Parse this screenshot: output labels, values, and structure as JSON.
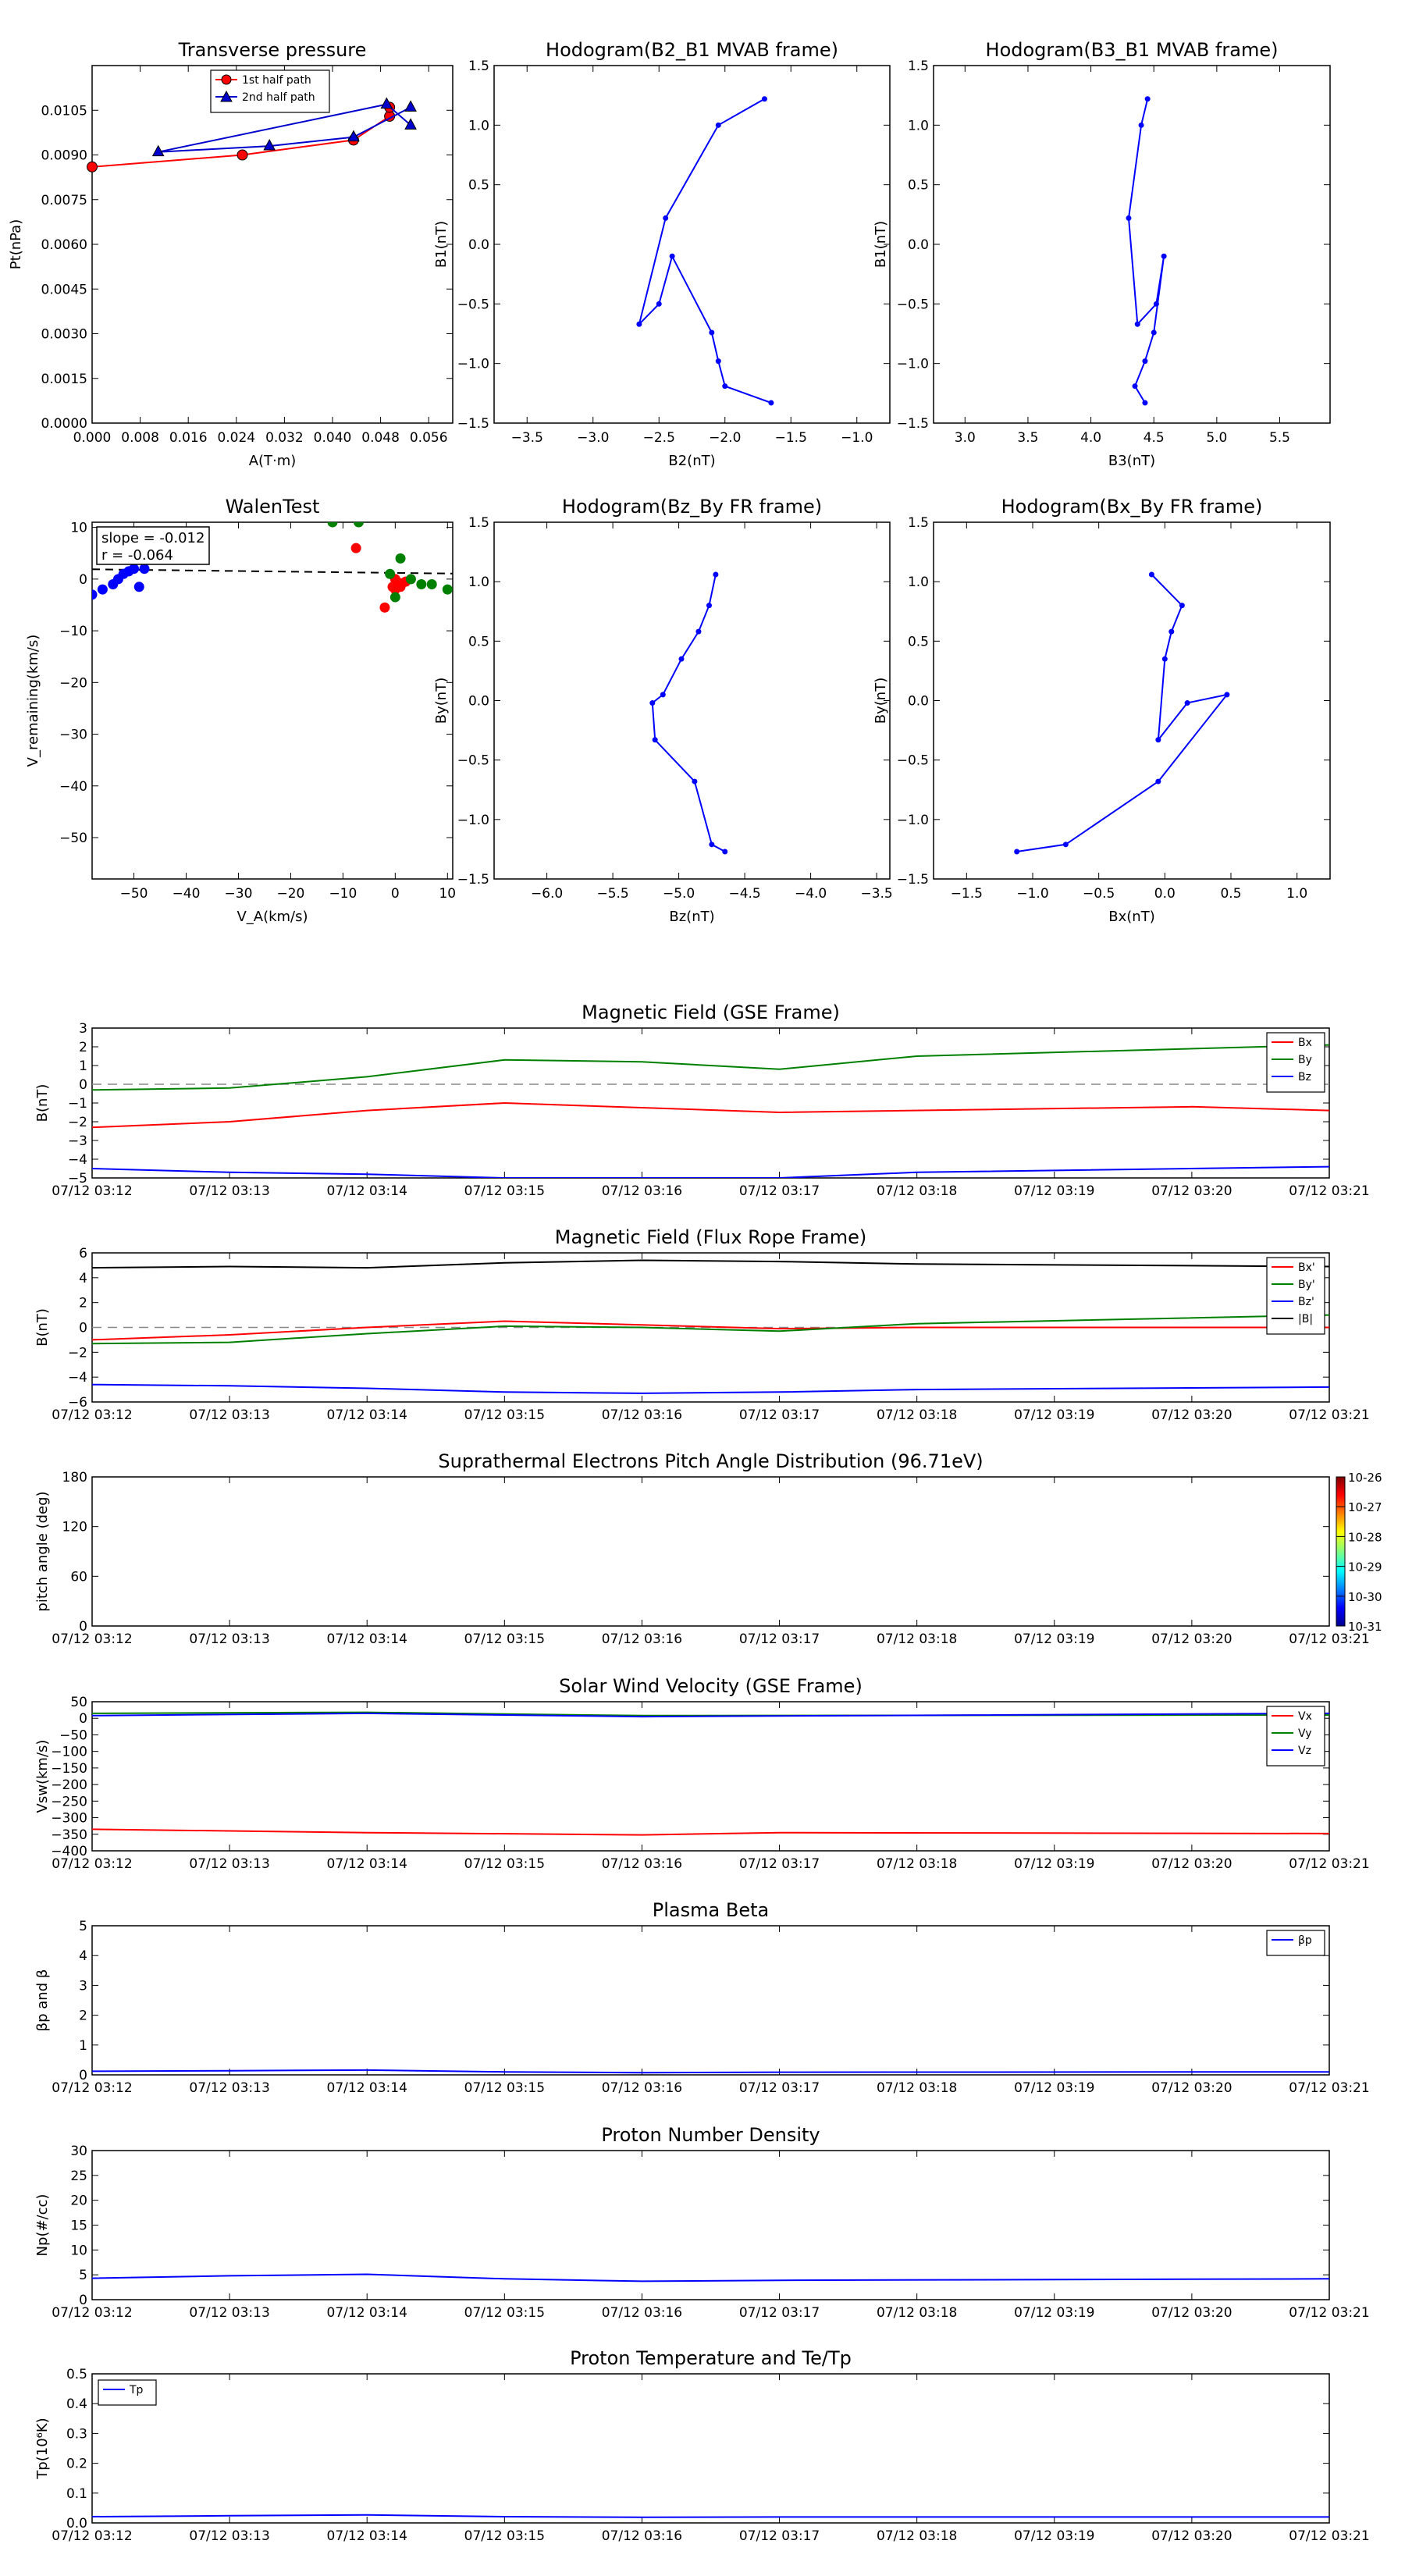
{
  "chart_data": [
    {
      "id": "transverse",
      "type": "line",
      "title": "Transverse pressure",
      "xlabel": "A(T·m)",
      "ylabel": "Pt(nPa)",
      "xlim": [
        0.0,
        0.06
      ],
      "ylim": [
        0.0,
        0.012
      ],
      "xticks": [
        0.0,
        0.008,
        0.016,
        0.024,
        0.032,
        0.04,
        0.048,
        0.056
      ],
      "xtick_labels": [
        "0.000",
        "0.008",
        "0.016",
        "0.024",
        "0.032",
        "0.040",
        "0.048",
        "0.056"
      ],
      "yticks": [
        0.0,
        0.0015,
        0.003,
        0.0045,
        0.006,
        0.0075,
        0.009,
        0.0105
      ],
      "ytick_labels": [
        "0.0000",
        "0.0015",
        "0.0030",
        "0.0045",
        "0.0060",
        "0.0075",
        "0.0090",
        "0.0105"
      ],
      "legend": "top-center",
      "series": [
        {
          "name": "1st half path",
          "color": "#ff0000",
          "marker": "circle",
          "x": [
            0.0,
            0.025,
            0.0435,
            0.0495,
            0.0495
          ],
          "y": [
            0.0086,
            0.009,
            0.0095,
            0.0103,
            0.0106
          ]
        },
        {
          "name": "2nd half path",
          "color": "#0000cc",
          "marker": "triangle",
          "x": [
            0.053,
            0.0435,
            0.0295,
            0.011,
            0.049,
            0.053
          ],
          "y": [
            0.0106,
            0.0096,
            0.0093,
            0.0091,
            0.0107,
            0.01
          ]
        }
      ]
    },
    {
      "id": "hodo_b2b1",
      "type": "line",
      "title": "Hodogram(B2_B1 MVAB frame)",
      "xlabel": "B2(nT)",
      "ylabel": "B1(nT)",
      "xlim": [
        -3.75,
        -0.75
      ],
      "ylim": [
        -1.5,
        1.5
      ],
      "xticks": [
        -3.5,
        -3.0,
        -2.5,
        -2.0,
        -1.5,
        -1.0
      ],
      "xtick_labels": [
        "−3.5",
        "−3.0",
        "−2.5",
        "−2.0",
        "−1.5",
        "−1.0"
      ],
      "yticks": [
        -1.5,
        -1.0,
        -0.5,
        0.0,
        0.5,
        1.0,
        1.5
      ],
      "ytick_labels": [
        "−1.5",
        "−1.0",
        "−0.5",
        "0.0",
        "0.5",
        "1.0",
        "1.5"
      ],
      "color": "#0000ff",
      "x": [
        -1.7,
        -2.05,
        -2.45,
        -2.65,
        -2.5,
        -2.4,
        -2.1,
        -2.05,
        -2.0,
        -1.65
      ],
      "y": [
        1.22,
        1.0,
        0.22,
        -0.67,
        -0.5,
        -0.1,
        -0.74,
        -0.98,
        -1.19,
        -1.33
      ]
    },
    {
      "id": "hodo_b3b1",
      "type": "line",
      "title": "Hodogram(B3_B1 MVAB frame)",
      "xlabel": "B3(nT)",
      "ylabel": "B1(nT)",
      "xlim": [
        2.75,
        5.9
      ],
      "ylim": [
        -1.5,
        1.5
      ],
      "xticks": [
        3.0,
        3.5,
        4.0,
        4.5,
        5.0,
        5.5
      ],
      "xtick_labels": [
        "3.0",
        "3.5",
        "4.0",
        "4.5",
        "5.0",
        "5.5"
      ],
      "yticks": [
        -1.5,
        -1.0,
        -0.5,
        0.0,
        0.5,
        1.0,
        1.5
      ],
      "ytick_labels": [
        "−1.5",
        "−1.0",
        "−0.5",
        "0.0",
        "0.5",
        "1.0",
        "1.5"
      ],
      "color": "#0000ff",
      "x": [
        4.45,
        4.4,
        4.3,
        4.37,
        4.52,
        4.58,
        4.5,
        4.43,
        4.35,
        4.43
      ],
      "y": [
        1.22,
        1.0,
        0.22,
        -0.67,
        -0.5,
        -0.1,
        -0.74,
        -0.98,
        -1.19,
        -1.33
      ]
    },
    {
      "id": "walen",
      "type": "scatter",
      "title": "WalenTest",
      "xlabel": "V_A(km/s)",
      "ylabel": "V_remaining(km/s)",
      "xlim": [
        -58,
        11
      ],
      "ylim": [
        -58,
        11
      ],
      "xticks": [
        -50,
        -40,
        -30,
        -20,
        -10,
        0,
        10
      ],
      "xtick_labels": [
        "−50",
        "−40",
        "−30",
        "−20",
        "−10",
        "0",
        "10"
      ],
      "yticks": [
        -50,
        -40,
        -30,
        -20,
        -10,
        0,
        10
      ],
      "ytick_labels": [
        "−50",
        "−40",
        "−30",
        "−20",
        "−10",
        "0",
        "10"
      ],
      "annotation": [
        "slope = -0.012",
        "r = -0.064"
      ],
      "fit": {
        "slope": -0.012,
        "intercept": 1.2
      },
      "series": [
        {
          "color": "#0000ff",
          "x": [
            -58,
            -56,
            -54,
            -53,
            -52,
            -51,
            -50,
            -48,
            -49
          ],
          "y": [
            -3,
            -2,
            -1,
            0,
            1,
            1.5,
            2,
            2,
            -1.5
          ]
        },
        {
          "color": "#ff0000",
          "x": [
            -7.5,
            0,
            -0.5,
            0,
            1,
            2,
            1,
            -2
          ],
          "y": [
            6,
            0,
            -1.5,
            -2,
            -1.5,
            -0.5,
            -0.8,
            -5.5
          ]
        },
        {
          "color": "#008000",
          "x": [
            -12,
            -7,
            1,
            0,
            3,
            5,
            7,
            10,
            -1
          ],
          "y": [
            11,
            11,
            4,
            -3.5,
            0,
            -1,
            -1,
            -2,
            1
          ]
        }
      ]
    },
    {
      "id": "hodo_bzby",
      "type": "line",
      "title": "Hodogram(Bz_By FR frame)",
      "xlabel": "Bz(nT)",
      "ylabel": "By(nT)",
      "xlim": [
        -6.4,
        -3.4
      ],
      "ylim": [
        -1.5,
        1.5
      ],
      "xticks": [
        -6.0,
        -5.5,
        -5.0,
        -4.5,
        -4.0,
        -3.5
      ],
      "xtick_labels": [
        "−6.0",
        "−5.5",
        "−5.0",
        "−4.5",
        "−4.0",
        "−3.5"
      ],
      "yticks": [
        -1.5,
        -1.0,
        -0.5,
        0.0,
        0.5,
        1.0,
        1.5
      ],
      "ytick_labels": [
        "−1.5",
        "−1.0",
        "−0.5",
        "0.0",
        "0.5",
        "1.0",
        "1.5"
      ],
      "color": "#0000ff",
      "x": [
        -4.72,
        -4.77,
        -4.85,
        -4.98,
        -5.12,
        -5.2,
        -5.18,
        -4.88,
        -4.75,
        -4.65
      ],
      "y": [
        1.06,
        0.8,
        0.58,
        0.35,
        0.05,
        -0.02,
        -0.33,
        -0.68,
        -1.21,
        -1.27
      ]
    },
    {
      "id": "hodo_bxby",
      "type": "line",
      "title": "Hodogram(Bx_By FR frame)",
      "xlabel": "Bx(nT)",
      "ylabel": "By(nT)",
      "xlim": [
        -1.75,
        1.25
      ],
      "ylim": [
        -1.5,
        1.5
      ],
      "xticks": [
        -1.5,
        -1.0,
        -0.5,
        0.0,
        0.5,
        1.0
      ],
      "xtick_labels": [
        "−1.5",
        "−1.0",
        "−0.5",
        "0.0",
        "0.5",
        "1.0"
      ],
      "yticks": [
        -1.5,
        -1.0,
        -0.5,
        0.0,
        0.5,
        1.0,
        1.5
      ],
      "ytick_labels": [
        "−1.5",
        "−1.0",
        "−0.5",
        "0.0",
        "0.5",
        "1.0",
        "1.5"
      ],
      "color": "#0000ff",
      "x": [
        -0.1,
        0.13,
        0.05,
        0.0,
        -0.05,
        0.17,
        0.47,
        -0.05,
        -0.75,
        -1.12
      ],
      "y": [
        1.06,
        0.8,
        0.58,
        0.35,
        -0.33,
        -0.02,
        0.05,
        -0.68,
        -1.21,
        -1.27
      ]
    },
    {
      "id": "mag_gse",
      "type": "line",
      "title": "Magnetic Field (GSE Frame)",
      "ylabel": "B(nT)",
      "xlabel": "",
      "x_categories": [
        "07/12 03:12",
        "07/12 03:13",
        "07/12 03:14",
        "07/12 03:15",
        "07/12 03:16",
        "07/12 03:17",
        "07/12 03:18",
        "07/12 03:19",
        "07/12 03:20",
        "07/12 03:21"
      ],
      "ylim": [
        -5,
        3
      ],
      "yticks": [
        -5,
        -4,
        -3,
        -2,
        -1,
        0,
        1,
        2,
        3
      ],
      "ytick_labels": [
        "−5",
        "−4",
        "−3",
        "−2",
        "−1",
        "0",
        "1",
        "2",
        "3"
      ],
      "zero_line": true,
      "legend": "top-right",
      "series": [
        {
          "name": "Bx",
          "color": "#ff0000",
          "x": [
            0,
            1,
            2,
            3,
            5,
            8,
            9
          ],
          "y": [
            -2.3,
            -2.0,
            -1.4,
            -1.0,
            -1.5,
            -1.2,
            -1.4
          ]
        },
        {
          "name": "By",
          "color": "#008000",
          "x": [
            0,
            1,
            2,
            3,
            4,
            5,
            6,
            9
          ],
          "y": [
            -0.3,
            -0.2,
            0.4,
            1.3,
            1.2,
            0.8,
            1.5,
            2.1
          ]
        },
        {
          "name": "Bz",
          "color": "#0000ff",
          "x": [
            0,
            1,
            2,
            3,
            5,
            6,
            9
          ],
          "y": [
            -4.5,
            -4.7,
            -4.8,
            -5.0,
            -5.0,
            -4.7,
            -4.4
          ]
        }
      ]
    },
    {
      "id": "mag_fr",
      "type": "line",
      "title": "Magnetic Field (Flux Rope Frame)",
      "ylabel": "B(nT)",
      "xlabel": "",
      "x_categories": [
        "07/12 03:12",
        "07/12 03:13",
        "07/12 03:14",
        "07/12 03:15",
        "07/12 03:16",
        "07/12 03:17",
        "07/12 03:18",
        "07/12 03:19",
        "07/12 03:20",
        "07/12 03:21"
      ],
      "ylim": [
        -6,
        6
      ],
      "yticks": [
        -6,
        -4,
        -2,
        0,
        2,
        4,
        6
      ],
      "ytick_labels": [
        "−6",
        "−4",
        "−2",
        "0",
        "2",
        "4",
        "6"
      ],
      "zero_line": true,
      "legend": "top-right",
      "series": [
        {
          "name": "Bx'",
          "color": "#ff0000",
          "x": [
            0,
            1,
            2,
            3,
            4,
            5,
            6,
            9
          ],
          "y": [
            -1.0,
            -0.6,
            0.0,
            0.5,
            0.2,
            -0.1,
            0.0,
            0.0
          ]
        },
        {
          "name": "By'",
          "color": "#008000",
          "x": [
            0,
            1,
            2,
            3,
            4,
            5,
            6,
            9
          ],
          "y": [
            -1.3,
            -1.2,
            -0.5,
            0.1,
            0.0,
            -0.3,
            0.3,
            1.0
          ]
        },
        {
          "name": "Bz'",
          "color": "#0000ff",
          "x": [
            0,
            1,
            2,
            3,
            4,
            5,
            6,
            9
          ],
          "y": [
            -4.6,
            -4.7,
            -4.9,
            -5.2,
            -5.3,
            -5.2,
            -5.0,
            -4.8
          ]
        },
        {
          "name": "|B|",
          "color": "#000000",
          "x": [
            0,
            1,
            2,
            3,
            4,
            5,
            6,
            9
          ],
          "y": [
            4.8,
            4.9,
            4.8,
            5.2,
            5.4,
            5.3,
            5.1,
            4.9
          ]
        }
      ]
    },
    {
      "id": "pad",
      "type": "heatmap",
      "title": "Suprathermal Electrons Pitch Angle Distribution (96.71eV)",
      "ylabel": "pitch angle (deg)",
      "xlabel": "",
      "x_categories": [
        "07/12 03:12",
        "07/12 03:13",
        "07/12 03:14",
        "07/12 03:15",
        "07/12 03:16",
        "07/12 03:17",
        "07/12 03:18",
        "07/12 03:19",
        "07/12 03:20",
        "07/12 03:21"
      ],
      "ylim": [
        0,
        180
      ],
      "yticks": [
        0,
        60,
        120,
        180
      ],
      "ytick_labels": [
        "0",
        "60",
        "120",
        "180"
      ],
      "colorbar": {
        "labels": [
          "10-26",
          "10-27",
          "10-28",
          "10-29",
          "10-30",
          "10-31"
        ],
        "colormap": "jet"
      }
    },
    {
      "id": "vsw",
      "type": "line",
      "title": "Solar Wind Velocity (GSE Frame)",
      "ylabel": "Vsw(km/s)",
      "xlabel": "",
      "x_categories": [
        "07/12 03:12",
        "07/12 03:13",
        "07/12 03:14",
        "07/12 03:15",
        "07/12 03:16",
        "07/12 03:17",
        "07/12 03:18",
        "07/12 03:19",
        "07/12 03:20",
        "07/12 03:21"
      ],
      "ylim": [
        -400,
        50
      ],
      "yticks": [
        -400,
        -350,
        -300,
        -250,
        -200,
        -150,
        -100,
        -50,
        0,
        50
      ],
      "ytick_labels": [
        "−400",
        "−350",
        "−300",
        "−250",
        "−200",
        "−150",
        "−100",
        "−50",
        "0",
        "50"
      ],
      "legend": "top-right",
      "series": [
        {
          "name": "Vx",
          "color": "#ff0000",
          "x": [
            0,
            2,
            4,
            5,
            9
          ],
          "y": [
            -335,
            -345,
            -352,
            -345,
            -348
          ]
        },
        {
          "name": "Vy",
          "color": "#008000",
          "x": [
            0,
            2,
            4,
            9
          ],
          "y": [
            15,
            18,
            8,
            10
          ]
        },
        {
          "name": "Vz",
          "color": "#0000ff",
          "x": [
            0,
            2,
            4,
            9
          ],
          "y": [
            8,
            15,
            5,
            15
          ]
        }
      ]
    },
    {
      "id": "beta",
      "type": "line",
      "title": "Plasma Beta",
      "ylabel": "βp and β",
      "xlabel": "",
      "x_categories": [
        "07/12 03:12",
        "07/12 03:13",
        "07/12 03:14",
        "07/12 03:15",
        "07/12 03:16",
        "07/12 03:17",
        "07/12 03:18",
        "07/12 03:19",
        "07/12 03:20",
        "07/12 03:21"
      ],
      "ylim": [
        0,
        5
      ],
      "yticks": [
        0,
        1,
        2,
        3,
        4,
        5
      ],
      "ytick_labels": [
        "0",
        "1",
        "2",
        "3",
        "4",
        "5"
      ],
      "legend": "top-right",
      "series": [
        {
          "name": "βp",
          "color": "#0000ff",
          "x": [
            0,
            1,
            2,
            3,
            4,
            5,
            9
          ],
          "y": [
            0.12,
            0.14,
            0.16,
            0.1,
            0.07,
            0.09,
            0.1
          ]
        }
      ]
    },
    {
      "id": "np",
      "type": "line",
      "title": "Proton Number Density",
      "ylabel": "Np(#/cc)",
      "xlabel": "",
      "x_categories": [
        "07/12 03:12",
        "07/12 03:13",
        "07/12 03:14",
        "07/12 03:15",
        "07/12 03:16",
        "07/12 03:17",
        "07/12 03:18",
        "07/12 03:19",
        "07/12 03:20",
        "07/12 03:21"
      ],
      "ylim": [
        0,
        30
      ],
      "yticks": [
        0,
        5,
        10,
        15,
        20,
        25,
        30
      ],
      "ytick_labels": [
        "0",
        "5",
        "10",
        "15",
        "20",
        "25",
        "30"
      ],
      "series": [
        {
          "name": "",
          "color": "#0000ff",
          "x": [
            0,
            1,
            2,
            3,
            4,
            5,
            9
          ],
          "y": [
            4.3,
            4.8,
            5.1,
            4.2,
            3.7,
            3.9,
            4.2
          ]
        }
      ]
    },
    {
      "id": "tp",
      "type": "line",
      "title": "Proton Temperature and Te/Tp",
      "ylabel": "Tp(10⁶K)",
      "xlabel": "",
      "x_categories": [
        "07/12 03:12",
        "07/12 03:13",
        "07/12 03:14",
        "07/12 03:15",
        "07/12 03:16",
        "07/12 03:17",
        "07/12 03:18",
        "07/12 03:19",
        "07/12 03:20",
        "07/12 03:21"
      ],
      "ylim": [
        0,
        0.5
      ],
      "yticks": [
        0,
        0.1,
        0.2,
        0.3,
        0.4,
        0.5
      ],
      "ytick_labels": [
        "0.0",
        "0.1",
        "0.2",
        "0.3",
        "0.4",
        "0.5"
      ],
      "legend": "top-left",
      "series": [
        {
          "name": "Tp",
          "color": "#0000ff",
          "x": [
            0,
            1,
            2,
            3,
            4,
            5,
            9
          ],
          "y": [
            0.021,
            0.024,
            0.027,
            0.021,
            0.019,
            0.02,
            0.02
          ]
        }
      ]
    }
  ]
}
